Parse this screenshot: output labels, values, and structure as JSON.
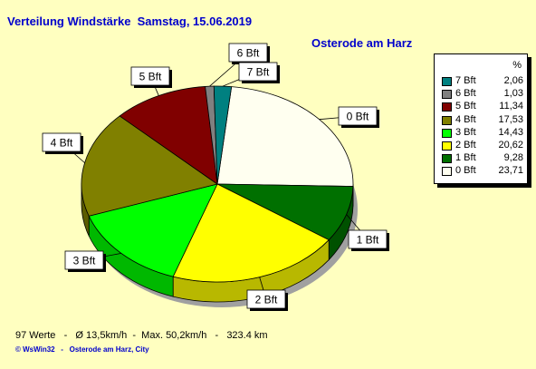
{
  "header": {
    "title": "Verteilung Windstärke  Samstag, 15.06.2019",
    "location": "Osterode am Harz"
  },
  "chart_data": {
    "type": "pie",
    "title": "Verteilung Windstärke  Samstag, 15.06.2019",
    "slices": [
      {
        "label": "0 Bft",
        "value": 23.71,
        "value_text": "23,71",
        "color": "#fffff0"
      },
      {
        "label": "1 Bft",
        "value": 9.28,
        "value_text": "9,28",
        "color": "#007000"
      },
      {
        "label": "2 Bft",
        "value": 20.62,
        "value_text": "20,62",
        "color": "#ffff00"
      },
      {
        "label": "3 Bft",
        "value": 14.43,
        "value_text": "14,43",
        "color": "#00ff00"
      },
      {
        "label": "4 Bft",
        "value": 17.53,
        "value_text": "17,53",
        "color": "#808000"
      },
      {
        "label": "5 Bft",
        "value": 11.34,
        "value_text": "11,34",
        "color": "#800000"
      },
      {
        "label": "6 Bft",
        "value": 1.03,
        "value_text": "1,03",
        "color": "#808080"
      },
      {
        "label": "7 Bft",
        "value": 2.06,
        "value_text": "2,06",
        "color": "#008080"
      }
    ],
    "legend": {
      "header": "%",
      "placement": "right"
    }
  },
  "footer": {
    "stats": "97 Werte   -   Ø 13,5km/h  -  Max. 50,2km/h   -   323.4 km",
    "credit": "© WsWin32   -   Osterode am Harz, City"
  }
}
